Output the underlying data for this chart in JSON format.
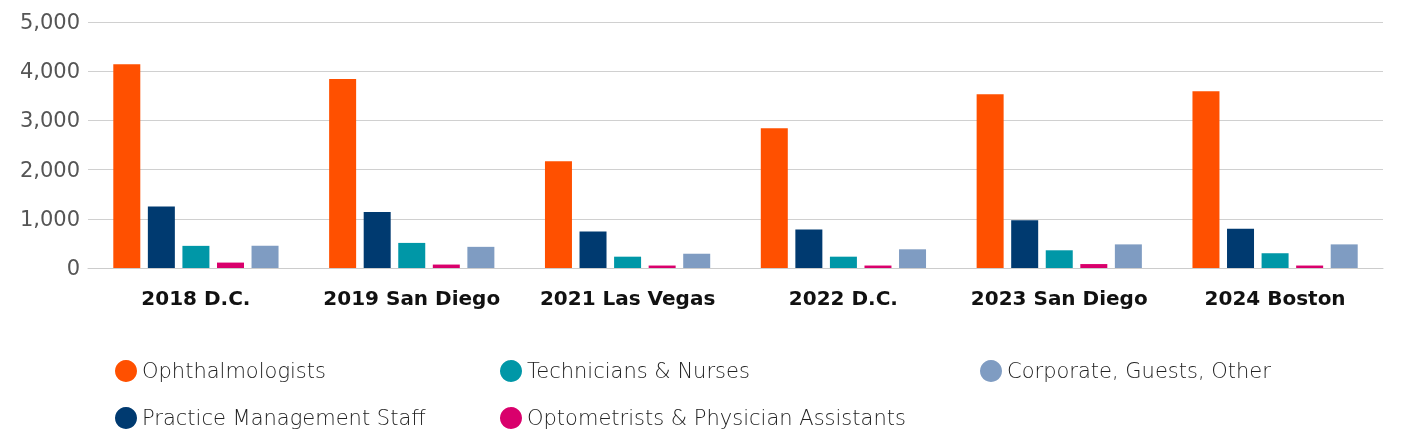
{
  "chart_data": {
    "type": "bar",
    "categories": [
      "2018 D.C.",
      "2019 San Diego",
      "2021 Las Vegas",
      "2022 D.C.",
      "2023 San Diego",
      "2024 Boston"
    ],
    "series": [
      {
        "name": "Ophthalmologists",
        "color": "#ff5000",
        "values": [
          4140,
          3840,
          2170,
          2840,
          3530,
          3590
        ]
      },
      {
        "name": "Practice Management Staff",
        "color": "#003a70",
        "values": [
          1250,
          1140,
          740,
          780,
          970,
          800
        ]
      },
      {
        "name": "Technicians & Nurses",
        "color": "#0097a7",
        "values": [
          450,
          510,
          230,
          230,
          360,
          300
        ]
      },
      {
        "name": "Optometrists & Physician Assistants",
        "color": "#d9006c",
        "values": [
          110,
          70,
          50,
          50,
          80,
          50
        ]
      },
      {
        "name": "Corporate, Guests, Other",
        "color": "#7f9cc2",
        "values": [
          450,
          430,
          290,
          380,
          480,
          480
        ]
      }
    ],
    "ylim": [
      0,
      5000
    ],
    "yticks": [
      0,
      {
        "value": 1000,
        "label": "1,000"
      },
      {
        "value": 2000,
        "label": "2,000"
      },
      {
        "value": 3000,
        "label": "3,000"
      },
      {
        "value": 4000,
        "label": "4,000"
      },
      {
        "value": 5000,
        "label": "5,000"
      }
    ],
    "grid": "y",
    "legend": "bottom"
  }
}
